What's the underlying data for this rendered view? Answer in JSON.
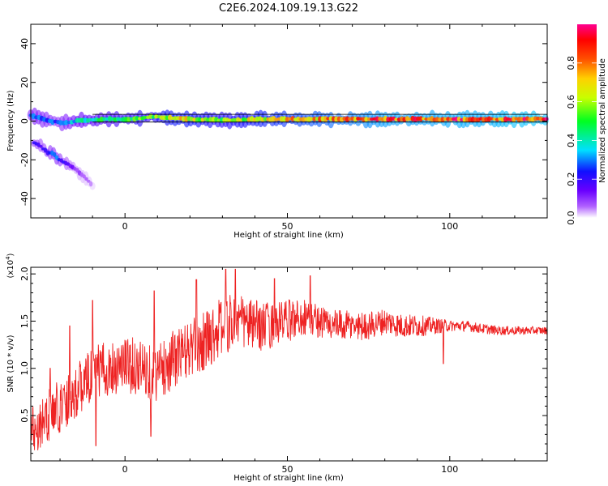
{
  "title": "C2E6.2024.109.19.13.G22",
  "colors": {
    "snr_line": "#ee2222",
    "band_line": "#000000"
  },
  "chart_data": [
    {
      "type": "heatmap",
      "name": "spectrogram",
      "xlabel": "Height of straight line (km)",
      "ylabel": "Frequency (Hz)",
      "xlim": [
        -29,
        130
      ],
      "ylim": [
        -50,
        50
      ],
      "x_ticks": [
        0,
        50,
        100
      ],
      "y_ticks": [
        -40,
        -20,
        0,
        20,
        40
      ],
      "band_lines_hz": [
        3.5,
        -0.5
      ],
      "grid": false,
      "colormap": "rainbow",
      "colorbar": {
        "label": "Normalized spectral amplitude",
        "range": [
          0,
          1
        ],
        "ticks": [
          0.0,
          0.2,
          0.4,
          0.6,
          0.8
        ]
      },
      "ridge_track": {
        "x": [
          -29,
          -27,
          -25,
          -23,
          -21,
          -19,
          -17,
          -15,
          -10,
          -5,
          0,
          5,
          8,
          10,
          15,
          20,
          30,
          40,
          50,
          60,
          70,
          80,
          90,
          100,
          110,
          120,
          130
        ],
        "y_hz": [
          3,
          2,
          1,
          0,
          -0.5,
          -1,
          -0.5,
          0,
          0.5,
          1,
          1,
          1.5,
          2.5,
          2,
          1.5,
          1,
          0.5,
          1,
          1,
          1,
          1,
          1,
          1,
          1,
          1,
          1,
          1
        ],
        "intensity": [
          0.3,
          0.35,
          0.3,
          0.3,
          0.25,
          0.3,
          0.35,
          0.4,
          0.45,
          0.5,
          0.55,
          0.6,
          0.55,
          0.65,
          0.7,
          0.7,
          0.6,
          0.7,
          0.75,
          0.8,
          0.85,
          0.9,
          0.9,
          0.92,
          0.92,
          0.95,
          0.95
        ]
      },
      "secondary_track": {
        "x": [
          -28,
          -26,
          -24,
          -22,
          -21,
          -19,
          -17,
          -15,
          -10
        ],
        "y_hz": [
          -11,
          -13,
          -16,
          -17,
          -19,
          -21,
          -23,
          -25,
          -33
        ],
        "intensity": [
          0.25,
          0.2,
          0.25,
          0.3,
          0.3,
          0.2,
          0.15,
          0.1,
          0.05
        ]
      }
    },
    {
      "type": "line",
      "name": "snr",
      "xlabel": "Height of straight line (km)",
      "ylabel": "SNR (10 * v/v)",
      "scale_label": "(x10",
      "scale_exponent": "4",
      "xlim": [
        -29,
        130
      ],
      "ylim": [
        0.02,
        2.07
      ],
      "x_ticks": [
        0,
        50,
        100
      ],
      "y_ticks": [
        0.5,
        1.0,
        1.5,
        2.0
      ],
      "y_tick_labels": [
        "0.5",
        "1.0",
        "1.5",
        "2.0"
      ],
      "grid": false,
      "anchors": {
        "x": [
          -29,
          -25,
          -20,
          -15,
          -10,
          -5,
          0,
          5,
          10,
          15,
          20,
          25,
          30,
          35,
          40,
          45,
          50,
          55,
          60,
          65,
          70,
          75,
          80,
          85,
          90,
          95,
          100,
          105,
          110,
          115,
          120,
          125,
          130
        ],
        "y": [
          0.35,
          0.45,
          0.6,
          0.75,
          0.95,
          1.0,
          1.05,
          1.0,
          0.95,
          1.1,
          1.2,
          1.3,
          1.45,
          1.5,
          1.45,
          1.45,
          1.5,
          1.55,
          1.5,
          1.45,
          1.45,
          1.45,
          1.5,
          1.45,
          1.45,
          1.45,
          1.45,
          1.45,
          1.42,
          1.4,
          1.4,
          1.4,
          1.4
        ]
      },
      "noise_amplitude": {
        "x": [
          -29,
          0,
          30,
          60,
          90,
          100,
          130
        ],
        "y": [
          0.28,
          0.3,
          0.32,
          0.18,
          0.12,
          0.06,
          0.04
        ]
      },
      "peaks": [
        {
          "x": -23,
          "y": 1.0
        },
        {
          "x": -17,
          "y": 1.45
        },
        {
          "x": -10,
          "y": 1.72
        },
        {
          "x": 9,
          "y": 1.82
        },
        {
          "x": 22,
          "y": 1.94
        },
        {
          "x": 31,
          "y": 2.05
        },
        {
          "x": 34,
          "y": 2.05
        },
        {
          "x": 46,
          "y": 1.95
        },
        {
          "x": 57,
          "y": 1.98
        },
        {
          "x": 8,
          "y": 0.28
        },
        {
          "x": -9,
          "y": 0.18
        },
        {
          "x": 98,
          "y": 1.05
        }
      ]
    }
  ]
}
